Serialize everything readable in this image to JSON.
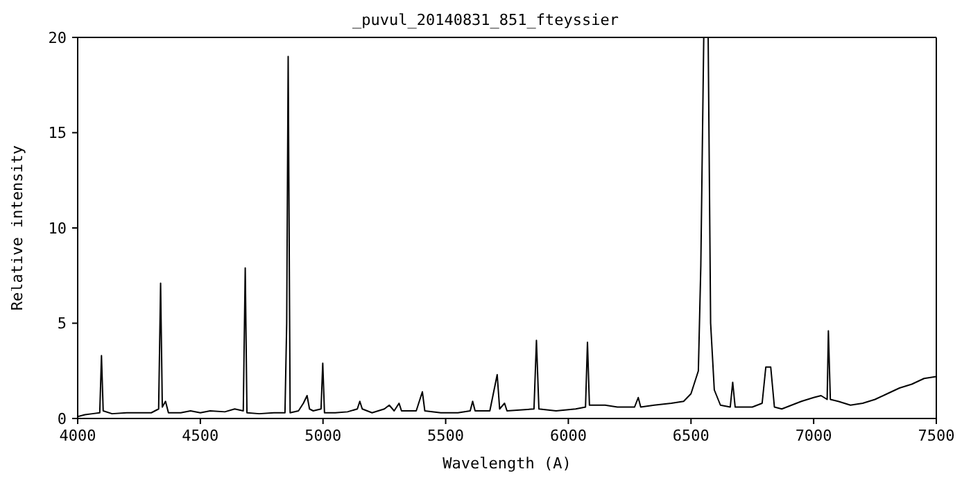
{
  "chart_data": {
    "type": "line",
    "title": "_puvul_20140831_851_fteyssier",
    "xlabel": "Wavelength (A)",
    "ylabel": "Relative intensity",
    "x": [
      4000,
      4030,
      4060,
      4090,
      4097,
      4104,
      4140,
      4200,
      4250,
      4300,
      4330,
      4338,
      4345,
      4358,
      4370,
      4420,
      4460,
      4500,
      4540,
      4600,
      4640,
      4675,
      4683,
      4690,
      4740,
      4800,
      4845,
      4852,
      4858,
      4866,
      4900,
      4920,
      4935,
      4945,
      4960,
      4992,
      4999,
      5006,
      5050,
      5100,
      5140,
      5150,
      5160,
      5200,
      5250,
      5270,
      5290,
      5310,
      5320,
      5380,
      5405,
      5415,
      5480,
      5550,
      5600,
      5610,
      5620,
      5680,
      5710,
      5720,
      5740,
      5750,
      5860,
      5870,
      5880,
      5950,
      6030,
      6070,
      6078,
      6086,
      6150,
      6200,
      6270,
      6285,
      6295,
      6350,
      6420,
      6470,
      6500,
      6530,
      6540,
      6552,
      6570,
      6580,
      6595,
      6620,
      6660,
      6670,
      6680,
      6750,
      6790,
      6805,
      6825,
      6840,
      6870,
      6950,
      7000,
      7030,
      7055,
      7060,
      7068,
      7100,
      7150,
      7200,
      7250,
      7300,
      7350,
      7400,
      7450,
      7500
    ],
    "series": [
      {
        "color": "#000000",
        "values": [
          0.1,
          0.2,
          0.25,
          0.3,
          3.3,
          0.4,
          0.25,
          0.3,
          0.3,
          0.3,
          0.5,
          7.1,
          0.6,
          0.9,
          0.3,
          0.3,
          0.4,
          0.3,
          0.4,
          0.35,
          0.5,
          0.4,
          7.9,
          0.3,
          0.25,
          0.3,
          0.3,
          5.0,
          19.0,
          0.3,
          0.4,
          0.8,
          1.2,
          0.5,
          0.4,
          0.5,
          2.9,
          0.3,
          0.3,
          0.35,
          0.5,
          0.9,
          0.5,
          0.3,
          0.5,
          0.7,
          0.4,
          0.8,
          0.4,
          0.4,
          1.4,
          0.4,
          0.3,
          0.3,
          0.4,
          0.9,
          0.4,
          0.4,
          2.3,
          0.5,
          0.8,
          0.4,
          0.5,
          4.1,
          0.5,
          0.4,
          0.5,
          0.6,
          4.0,
          0.7,
          0.7,
          0.6,
          0.6,
          1.1,
          0.6,
          0.7,
          0.8,
          0.9,
          1.3,
          2.5,
          8,
          20,
          20,
          5,
          1.5,
          0.7,
          0.6,
          1.9,
          0.6,
          0.6,
          0.8,
          2.7,
          2.7,
          0.6,
          0.5,
          0.9,
          1.1,
          1.2,
          1.0,
          4.6,
          1.0,
          0.9,
          0.7,
          0.8,
          1.0,
          1.3,
          1.6,
          1.8,
          2.1,
          2.2
        ]
      }
    ],
    "xlim": [
      4000,
      7500
    ],
    "xticks": [
      4000,
      4500,
      5000,
      5500,
      6000,
      6500,
      7000,
      7500
    ],
    "ylim": [
      0,
      20
    ],
    "yticks": [
      0,
      5,
      10,
      15,
      20
    ],
    "grid": false,
    "legend": false,
    "marker": "none",
    "line_style": "solid"
  }
}
